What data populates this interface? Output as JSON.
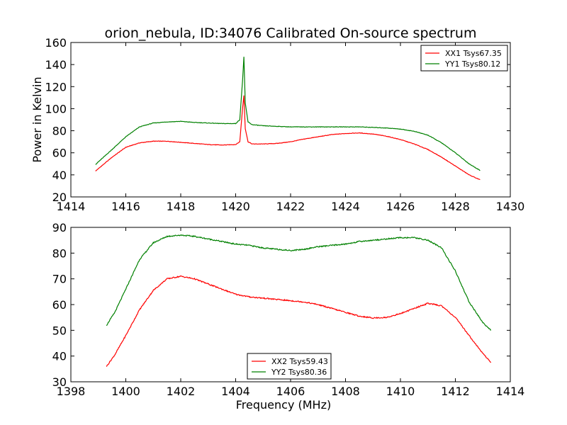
{
  "figure_title": "orion_nebula, ID:34076 Calibrated On-source spectrum",
  "chart_data": [
    {
      "type": "line",
      "title": "orion_nebula, ID:34076 Calibrated On-source spectrum",
      "xlabel": "",
      "ylabel": "Power in Kelvin",
      "xlim": [
        1414,
        1430
      ],
      "ylim": [
        20,
        160
      ],
      "xticks": [
        "1414",
        "1416",
        "1418",
        "1420",
        "1422",
        "1424",
        "1426",
        "1428",
        "1430"
      ],
      "yticks": [
        "20",
        "40",
        "60",
        "80",
        "100",
        "120",
        "140",
        "160"
      ],
      "grid": false,
      "legend_position": "top-right",
      "series": [
        {
          "name": "XX1 Tsys67.35",
          "color": "#ff0000",
          "x": [
            1414.9,
            1415.5,
            1416.0,
            1416.5,
            1417.0,
            1417.5,
            1418.0,
            1418.5,
            1419.0,
            1419.5,
            1420.0,
            1420.15,
            1420.25,
            1420.3,
            1420.35,
            1420.45,
            1420.6,
            1421.0,
            1421.5,
            1422.0,
            1422.5,
            1423.0,
            1423.5,
            1424.0,
            1424.5,
            1425.0,
            1425.5,
            1426.0,
            1426.5,
            1427.0,
            1427.5,
            1428.0,
            1428.5,
            1428.9
          ],
          "y": [
            43.5,
            56,
            65,
            69,
            70.5,
            70.5,
            69.5,
            68.5,
            67.5,
            67,
            67.5,
            70,
            100,
            112,
            82,
            70,
            68,
            68,
            68.5,
            70,
            72.5,
            74.5,
            76.5,
            77.5,
            78,
            77,
            75,
            72,
            68,
            63,
            56,
            48,
            40,
            35.5
          ]
        },
        {
          "name": "YY1 Tsys80.12",
          "color": "#008000",
          "x": [
            1414.9,
            1415.5,
            1416.0,
            1416.5,
            1417.0,
            1417.5,
            1418.0,
            1418.5,
            1419.0,
            1419.5,
            1420.0,
            1420.15,
            1420.25,
            1420.3,
            1420.35,
            1420.45,
            1420.6,
            1421.0,
            1421.5,
            1422.0,
            1422.5,
            1423.0,
            1423.5,
            1424.0,
            1424.5,
            1425.0,
            1425.5,
            1426.0,
            1426.5,
            1427.0,
            1427.5,
            1428.0,
            1428.5,
            1428.9
          ],
          "y": [
            49.5,
            63,
            74.5,
            83.5,
            87,
            88,
            88.5,
            87.5,
            87,
            86.5,
            86.5,
            90,
            125,
            147,
            105,
            88,
            85.5,
            84.5,
            84,
            83.5,
            83.5,
            83.5,
            83.5,
            83.5,
            83.5,
            83,
            82.5,
            81.5,
            79.5,
            76,
            69,
            60,
            50,
            44
          ]
        }
      ]
    },
    {
      "type": "line",
      "title": "",
      "xlabel": "Frequency (MHz)",
      "ylabel": "",
      "xlim": [
        1398,
        1414
      ],
      "ylim": [
        30,
        90
      ],
      "xticks": [
        "1398",
        "1400",
        "1402",
        "1404",
        "1406",
        "1408",
        "1410",
        "1412",
        "1414"
      ],
      "yticks": [
        "30",
        "40",
        "50",
        "60",
        "70",
        "80",
        "90"
      ],
      "grid": false,
      "legend_position": "bottom-center",
      "series": [
        {
          "name": "XX2 Tsys59.43",
          "color": "#ff0000",
          "x": [
            1399.3,
            1399.6,
            1400.0,
            1400.5,
            1401.0,
            1401.5,
            1402.0,
            1402.5,
            1403.0,
            1403.5,
            1404.0,
            1404.5,
            1405.0,
            1405.5,
            1406.0,
            1406.5,
            1407.0,
            1407.5,
            1408.0,
            1408.5,
            1409.0,
            1409.5,
            1410.0,
            1410.5,
            1411.0,
            1411.5,
            1412.0,
            1412.5,
            1413.0,
            1413.3
          ],
          "y": [
            36,
            40.5,
            48,
            58,
            65.5,
            70,
            71,
            70,
            68,
            66,
            64,
            63,
            62.5,
            62,
            61.5,
            61,
            60,
            58.5,
            57,
            55.5,
            54.8,
            55,
            56.5,
            58.5,
            60.5,
            59.5,
            55,
            48,
            41,
            37.5
          ]
        },
        {
          "name": "YY2 Tsys80.36",
          "color": "#008000",
          "x": [
            1399.3,
            1399.6,
            1400.0,
            1400.5,
            1401.0,
            1401.5,
            1402.0,
            1402.5,
            1403.0,
            1403.5,
            1404.0,
            1404.5,
            1405.0,
            1405.5,
            1406.0,
            1406.5,
            1407.0,
            1407.5,
            1408.0,
            1408.5,
            1409.0,
            1409.5,
            1410.0,
            1410.5,
            1411.0,
            1411.5,
            1412.0,
            1412.5,
            1413.0,
            1413.3
          ],
          "y": [
            52,
            57,
            66,
            77.5,
            84,
            86.5,
            87,
            86.5,
            85.5,
            84.5,
            83.5,
            83,
            82,
            81.5,
            81,
            81.5,
            82.5,
            83,
            83.5,
            84.5,
            85,
            85.5,
            86,
            86,
            85,
            82,
            73,
            61,
            53,
            50
          ]
        }
      ]
    }
  ]
}
